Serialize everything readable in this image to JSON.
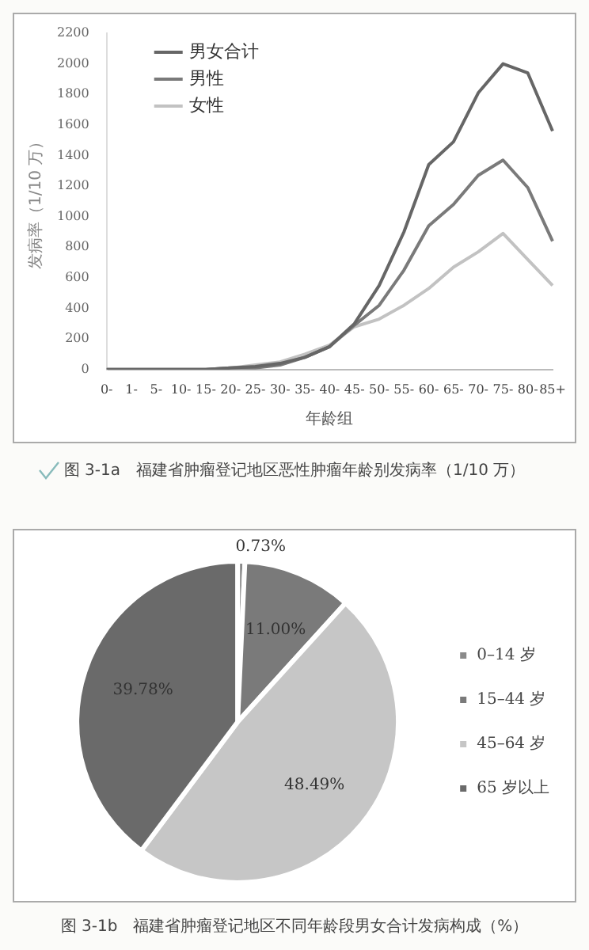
{
  "chart_data": [
    {
      "type": "line",
      "title": "图 3-1a　福建省肿瘤登记地区恶性肿瘤年龄别发病率（1/10 万）",
      "xlabel": "年龄组",
      "ylabel": "发病率（1/10 万）",
      "categories": [
        "0-",
        "1-",
        "5-",
        "10-",
        "15-",
        "20-",
        "25-",
        "30-",
        "35-",
        "40-",
        "45-",
        "50-",
        "55-",
        "60-",
        "65-",
        "70-",
        "75-",
        "80-",
        "85+"
      ],
      "series": [
        {
          "name": "男女合计",
          "color": "#666666",
          "values": [
            0,
            0,
            0,
            0,
            0,
            10,
            20,
            40,
            80,
            150,
            300,
            550,
            900,
            1340,
            1490,
            1810,
            2000,
            1940,
            1560
          ]
        },
        {
          "name": "男性",
          "color": "#7a7a7a",
          "values": [
            0,
            0,
            0,
            0,
            0,
            10,
            10,
            30,
            80,
            150,
            290,
            420,
            650,
            940,
            1080,
            1270,
            1370,
            1190,
            840
          ]
        },
        {
          "name": "女性",
          "color": "#c2c2c2",
          "values": [
            0,
            0,
            0,
            0,
            0,
            10,
            30,
            50,
            100,
            160,
            280,
            330,
            420,
            530,
            670,
            770,
            890,
            720,
            550
          ]
        }
      ],
      "ylim": [
        0,
        2200
      ],
      "yticks": [
        0,
        200,
        400,
        600,
        800,
        1000,
        1200,
        1400,
        1600,
        1800,
        2000,
        2200
      ],
      "grid": false,
      "legend": "top left",
      "marker": "none",
      "line_style": "solid"
    },
    {
      "type": "pie",
      "title": "图 3-1b　福建省肿瘤登记地区不同年龄段男女合计发病构成（%）",
      "categories": [
        "0–14 岁",
        "15–44 岁",
        "45–64 岁",
        "65 岁以上"
      ],
      "values": [
        0.73,
        11.0,
        48.49,
        39.78
      ],
      "colors": [
        "#8a8a8a",
        "#7a7a7a",
        "#c6c6c6",
        "#6a6a6a"
      ],
      "value_labels": [
        "0.73%",
        "11.00%",
        "48.49%",
        "39.78%"
      ],
      "legend": "right"
    }
  ]
}
